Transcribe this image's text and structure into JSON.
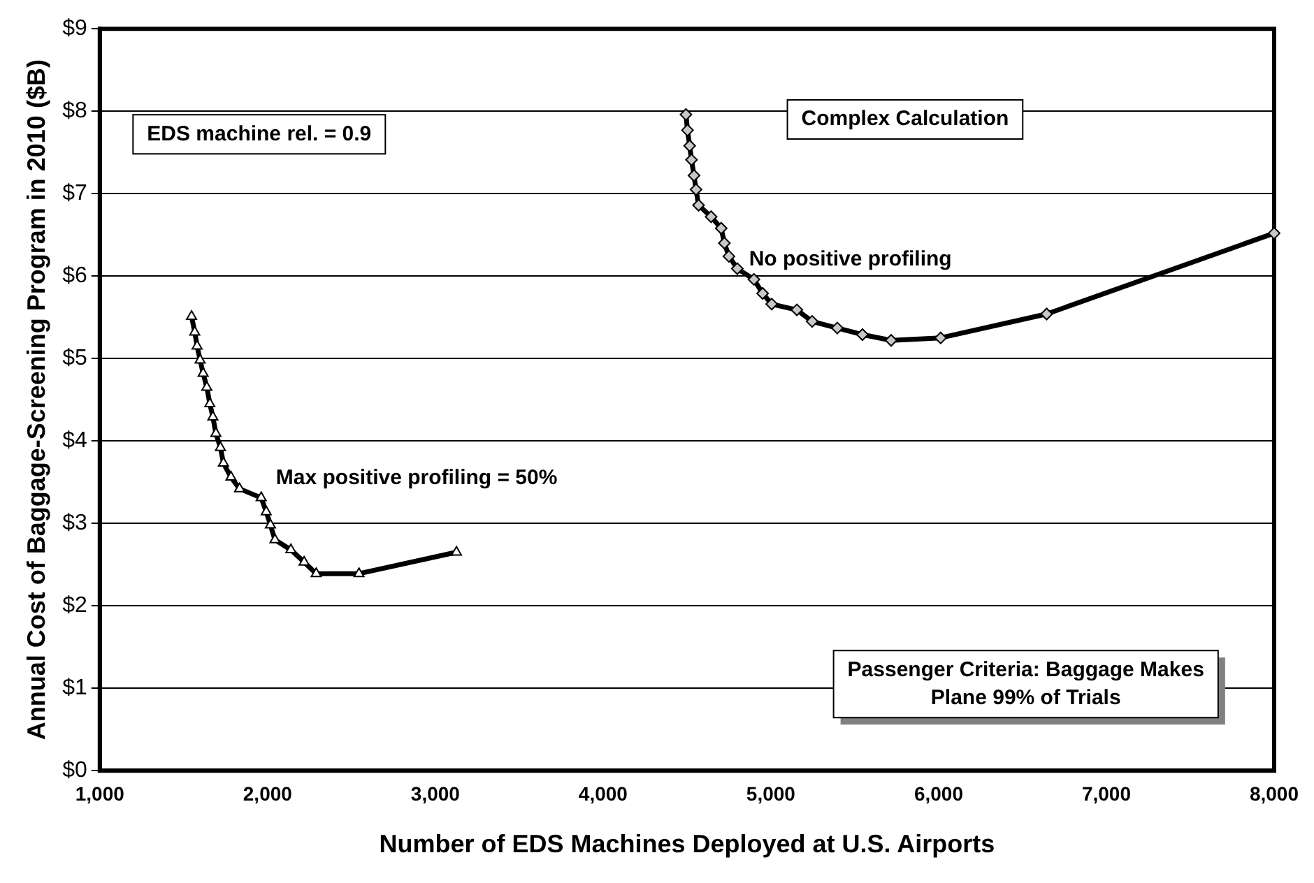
{
  "chart_data": {
    "type": "line",
    "xlabel": "Number of EDS Machines Deployed at U.S. Airports",
    "ylabel": "Annual Cost of Baggage-Screening Program in 2010 ($B)",
    "xlim": [
      1000,
      8000
    ],
    "ylim": [
      0,
      9
    ],
    "xticks": [
      {
        "value": 1000,
        "label": "1,000"
      },
      {
        "value": 2000,
        "label": "2,000"
      },
      {
        "value": 3000,
        "label": "3,000"
      },
      {
        "value": 4000,
        "label": "4,000"
      },
      {
        "value": 5000,
        "label": "5,000"
      },
      {
        "value": 6000,
        "label": "6,000"
      },
      {
        "value": 7000,
        "label": "7,000"
      },
      {
        "value": 8000,
        "label": "8,000"
      }
    ],
    "yticks": [
      {
        "value": 0,
        "label": "$0"
      },
      {
        "value": 1,
        "label": "$1"
      },
      {
        "value": 2,
        "label": "$2"
      },
      {
        "value": 3,
        "label": "$3"
      },
      {
        "value": 4,
        "label": "$4"
      },
      {
        "value": 5,
        "label": "$5"
      },
      {
        "value": 6,
        "label": "$6"
      },
      {
        "value": 7,
        "label": "$7"
      },
      {
        "value": 8,
        "label": "$8"
      },
      {
        "value": 9,
        "label": "$9"
      }
    ],
    "grid": "y",
    "legend": false,
    "annotations": [
      "EDS machine rel. = 0.9",
      "Complex Calculation",
      "No positive profiling",
      "Max positive profiling = 50%",
      "Passenger Criteria: Baggage Makes Plane 99% of Trials"
    ],
    "series": [
      {
        "color": "#000000",
        "marker": "triangle",
        "x": [
          1547,
          1566,
          1580,
          1598,
          1616,
          1638,
          1656,
          1674,
          1692,
          1719,
          1737,
          1782,
          1833,
          1962,
          1992,
          2017,
          2044,
          2139,
          2218,
          2290,
          2545,
          3126
        ],
        "values": [
          5.51,
          5.32,
          5.15,
          4.98,
          4.82,
          4.65,
          4.45,
          4.29,
          4.09,
          3.92,
          3.73,
          3.56,
          3.42,
          3.31,
          3.14,
          2.98,
          2.8,
          2.68,
          2.53,
          2.39,
          2.39,
          2.65
        ]
      },
      {
        "color": "#000000",
        "marker": "diamond",
        "x": [
          4494,
          4503,
          4516,
          4527,
          4542,
          4554,
          4569,
          4644,
          4704,
          4723,
          4750,
          4800,
          4899,
          4951,
          5005,
          5155,
          5246,
          5396,
          5546,
          5717,
          6012,
          6644,
          8000
        ],
        "values": [
          7.96,
          7.77,
          7.58,
          7.41,
          7.22,
          7.05,
          6.86,
          6.72,
          6.58,
          6.4,
          6.24,
          6.09,
          5.96,
          5.79,
          5.66,
          5.59,
          5.45,
          5.37,
          5.29,
          5.22,
          5.25,
          5.54,
          6.52
        ]
      }
    ]
  }
}
